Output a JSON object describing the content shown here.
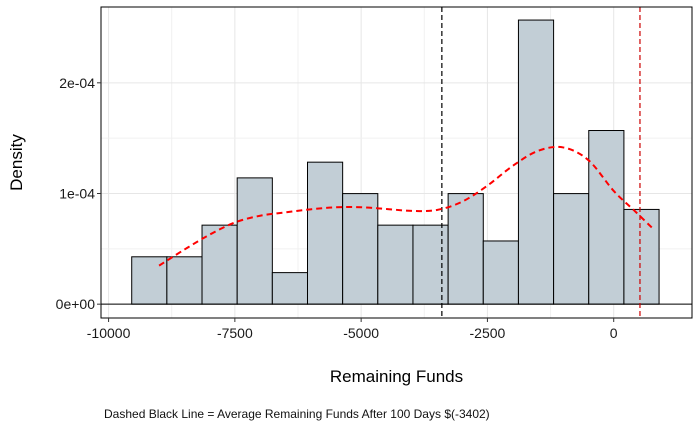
{
  "chart_data": {
    "type": "bar",
    "subtype": "histogram-with-density",
    "xlabel": "Remaining Funds",
    "ylabel": "Density",
    "xlim": [
      -10150,
      1550
    ],
    "ylim": [
      -1.25e-05,
      0.0002685
    ],
    "x_ticks": [
      {
        "value": -10000,
        "label": "-10000"
      },
      {
        "value": -7500,
        "label": "-7500"
      },
      {
        "value": -5000,
        "label": "-5000"
      },
      {
        "value": -2500,
        "label": "-2500"
      },
      {
        "value": 0,
        "label": "0"
      }
    ],
    "y_ticks": [
      {
        "value": 0,
        "label": "0e+00"
      },
      {
        "value": 0.0001,
        "label": "1e-04"
      },
      {
        "value": 0.0002,
        "label": "2e-04"
      }
    ],
    "grid": true,
    "bin_width": 696,
    "bars": [
      {
        "x0": -9542,
        "density": 4.28e-05
      },
      {
        "x0": -8846,
        "density": 4.28e-05
      },
      {
        "x0": -8150,
        "density": 7.14e-05
      },
      {
        "x0": -7454,
        "density": 0.0001141
      },
      {
        "x0": -6758,
        "density": 2.85e-05
      },
      {
        "x0": -6062,
        "density": 0.0001283
      },
      {
        "x0": -5366,
        "density": 9.99e-05
      },
      {
        "x0": -4670,
        "density": 7.14e-05
      },
      {
        "x0": -3974,
        "density": 7.14e-05
      },
      {
        "x0": -3278,
        "density": 9.99e-05
      },
      {
        "x0": -2582,
        "density": 5.71e-05
      },
      {
        "x0": -1886,
        "density": 0.0002567
      },
      {
        "x0": -1190,
        "density": 9.99e-05
      },
      {
        "x0": -494,
        "density": 0.0001569
      },
      {
        "x0": 202,
        "density": 8.56e-05
      }
    ],
    "density_curve": {
      "x": [
        -9000,
        -8500,
        -8000,
        -7500,
        -7000,
        -6500,
        -6000,
        -5500,
        -5000,
        -4500,
        -4000,
        -3500,
        -3000,
        -2500,
        -2000,
        -1500,
        -1000,
        -500,
        0,
        400,
        800
      ],
      "y": [
        3.48e-05,
        4.93e-05,
        6.28e-05,
        7.38e-05,
        7.99e-05,
        8.29e-05,
        8.57e-05,
        8.75e-05,
        8.76e-05,
        8.6e-05,
        8.43e-05,
        8.51e-05,
        9.26e-05,
        0.0001071,
        0.0001249,
        0.0001385,
        0.0001416,
        0.0001301,
        0.0001023,
        8.49e-05,
        6.72e-05
      ],
      "color": "#ff0000",
      "style": "dashed"
    },
    "reference_lines": [
      {
        "x": -3402,
        "color": "#000000",
        "style": "dashed"
      },
      {
        "x": 520,
        "color": "#cc0000",
        "style": "dashed"
      }
    ],
    "colors": {
      "bar_fill": "#c2ced6",
      "bar_stroke": "#000000",
      "grid": "#e6e6e6"
    },
    "caption": "Dashed Black Line = Average Remaining Funds After 100 Days $(-3402)"
  }
}
